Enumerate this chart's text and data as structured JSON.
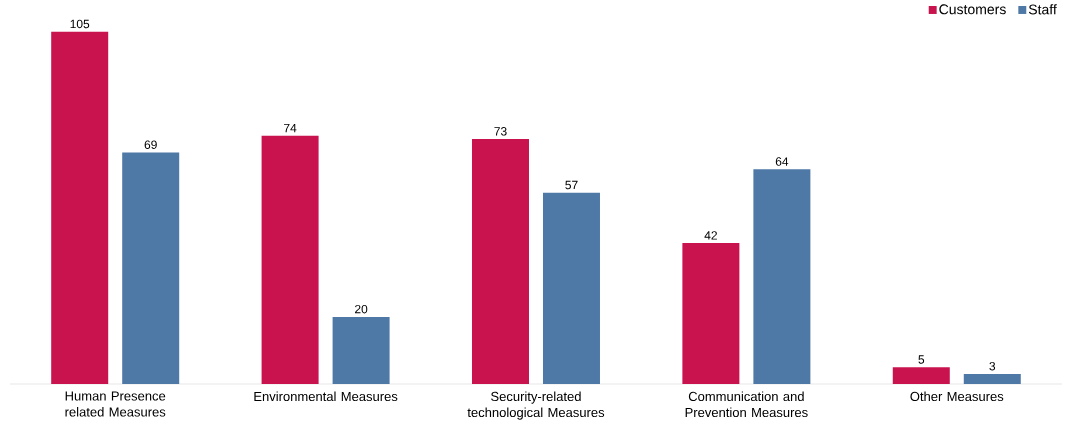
{
  "chart_data": {
    "type": "bar",
    "categories": [
      "Human Presence related Measures",
      "Environmental Measures",
      "Security-related technological Measures",
      "Communication and Prevention Measures",
      "Other Measures"
    ],
    "series": [
      {
        "name": "Customers",
        "color": "#c8134e",
        "values": [
          105,
          74,
          73,
          42,
          5
        ]
      },
      {
        "name": "Staff",
        "color": "#4e79a7",
        "values": [
          69,
          20,
          57,
          64,
          3
        ]
      }
    ],
    "data_labels": true,
    "legend": "top right"
  }
}
